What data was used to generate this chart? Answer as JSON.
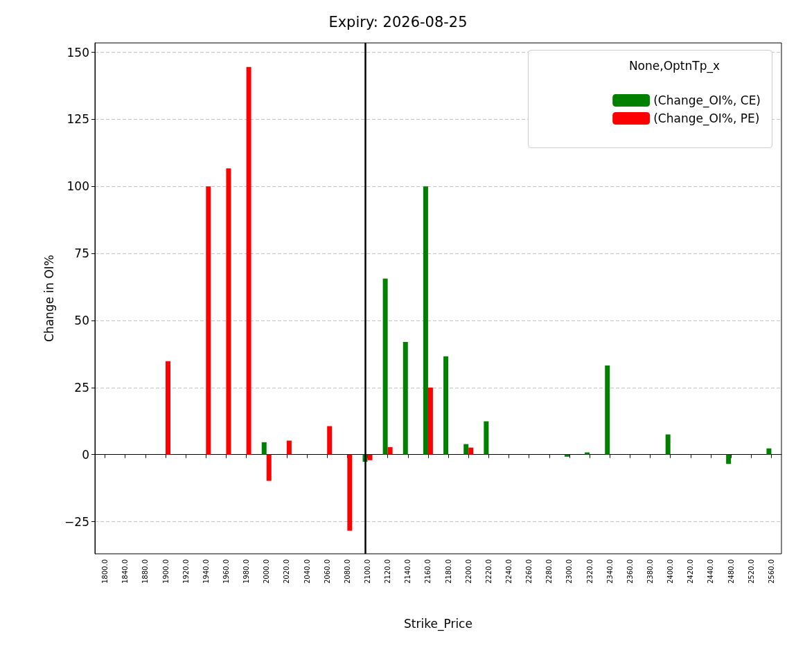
{
  "chart_data": {
    "type": "bar",
    "title": "Expiry: 2026-08-25",
    "xlabel": "Strike_Price",
    "ylabel": "Change in OI%",
    "legend_title": "None,OptnTp_x",
    "categories": [
      "1800.0",
      "1840.0",
      "1880.0",
      "1900.0",
      "1920.0",
      "1940.0",
      "1960.0",
      "1980.0",
      "2000.0",
      "2020.0",
      "2040.0",
      "2060.0",
      "2080.0",
      "2100.0",
      "2120.0",
      "2140.0",
      "2160.0",
      "2180.0",
      "2200.0",
      "2220.0",
      "2240.0",
      "2260.0",
      "2280.0",
      "2300.0",
      "2320.0",
      "2340.0",
      "2360.0",
      "2380.0",
      "2400.0",
      "2420.0",
      "2440.0",
      "2480.0",
      "2520.0",
      "2560.0"
    ],
    "series": [
      {
        "name": "(Change_OI%, CE)",
        "color": "#008000",
        "values": [
          null,
          null,
          null,
          null,
          null,
          null,
          null,
          null,
          4.6,
          null,
          null,
          null,
          null,
          -2.7,
          65.6,
          42,
          100,
          36.6,
          3.9,
          12.4,
          null,
          null,
          null,
          -0.8,
          0.8,
          33.2,
          null,
          null,
          7.5,
          null,
          null,
          -3.5,
          null,
          2.3
        ]
      },
      {
        "name": "(Change_OI%, PE)",
        "color": "#ff0000",
        "values": [
          null,
          null,
          null,
          34.8,
          null,
          100,
          106.7,
          144.5,
          -9.8,
          5.2,
          null,
          10.6,
          -28.4,
          -2.1,
          2.8,
          null,
          25,
          null,
          2.6,
          null,
          null,
          null,
          null,
          null,
          null,
          null,
          null,
          null,
          null,
          null,
          null,
          null,
          null,
          null
        ]
      }
    ],
    "ylim": [
      -37,
      153.5
    ],
    "yticks": [
      -25,
      0,
      25,
      50,
      75,
      100,
      125,
      150
    ],
    "grid": "y",
    "legend": "top right",
    "ref_lines": [
      {
        "axis": "x",
        "value": "2100.0",
        "color": "#000000"
      }
    ]
  }
}
